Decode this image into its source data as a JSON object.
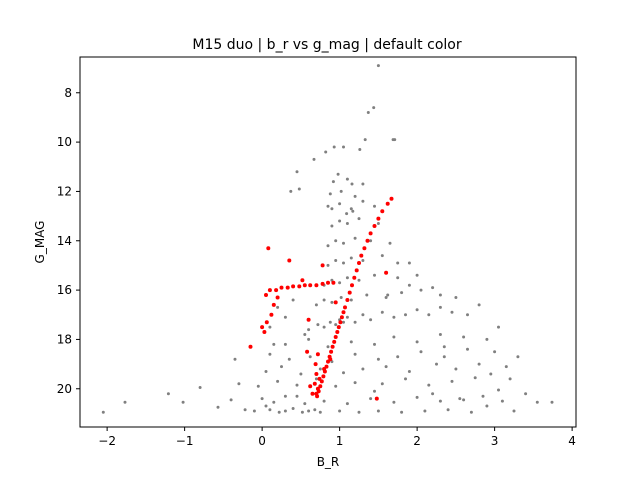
{
  "chart_data": {
    "type": "scatter",
    "title": "M15 duo | b_r vs g_mag | default color",
    "xlabel": "B_R",
    "ylabel": "G_MAG",
    "xlim": [
      -2.35,
      4.05
    ],
    "ylim": [
      21.55,
      6.55
    ],
    "y_inverted": true,
    "grid": false,
    "xticks": [
      -2,
      -1,
      0,
      1,
      2,
      3,
      4
    ],
    "yticks": [
      8,
      10,
      12,
      14,
      16,
      18,
      20
    ],
    "colors": {
      "series_0": "#808080",
      "series_1": "#ff0000",
      "axes": "#000000"
    },
    "series": [
      {
        "color": "#808080",
        "marker_size": 1.5,
        "x": [
          1.5,
          1.44,
          1.37,
          1.33,
          1.69,
          1.71,
          1.05,
          1.26,
          0.93,
          0.67,
          0.82,
          0.98,
          0.48,
          1.16,
          0.45,
          0.37,
          0.9,
          1.09,
          1.17,
          -2.05,
          -1.77,
          -1.21,
          -1.02,
          -0.8,
          -0.4,
          -0.57,
          -0.22,
          -0.1,
          0.05,
          0.1,
          0.22,
          0.3,
          0.4,
          0.52,
          0.6,
          0.68,
          0.75,
          1.0,
          1.25,
          1.5,
          1.8,
          2.1,
          2.4,
          2.7,
          2.9,
          3.1,
          3.25,
          3.4,
          3.55,
          3.74,
          0.0,
          0.15,
          0.3,
          0.55,
          0.8,
          1.1,
          1.4,
          1.7,
          2.0,
          2.3,
          2.6,
          2.85,
          3.05,
          3.2,
          0.45,
          1.45,
          2.2,
          2.55,
          -0.3,
          -0.05,
          0.2,
          0.45,
          0.7,
          0.95,
          1.2,
          1.55,
          1.85,
          2.15,
          2.45,
          2.75,
          2.95,
          3.15,
          0.05,
          0.25,
          0.5,
          0.75,
          1.05,
          1.3,
          1.6,
          1.9,
          2.25,
          2.5,
          2.8,
          -0.35,
          0.1,
          0.35,
          0.62,
          0.9,
          1.2,
          1.5,
          1.75,
          2.05,
          2.35,
          2.65,
          3.0,
          0.3,
          0.6,
          0.85,
          1.15,
          1.45,
          1.7,
          2.0,
          2.3,
          2.6,
          2.9,
          0.6,
          0.72,
          0.8,
          0.88,
          0.95,
          1.0,
          1.05,
          1.1,
          1.2,
          1.3,
          1.4,
          1.55,
          1.7,
          1.85,
          2.0,
          2.15,
          2.3,
          2.45,
          0.7,
          0.8,
          0.9,
          1.02,
          1.15,
          1.35,
          1.6,
          1.8,
          2.05,
          2.3,
          0.8,
          0.9,
          1.0,
          1.1,
          1.25,
          1.45,
          1.75,
          2.0,
          0.85,
          0.95,
          1.05,
          1.15,
          1.3,
          1.55,
          1.9,
          0.85,
          0.95,
          1.05,
          1.2,
          1.4,
          1.65,
          0.9,
          1.0,
          1.1,
          1.25,
          1.5,
          0.85,
          1.0,
          1.15,
          1.3,
          1.45,
          0.88,
          1.02,
          1.2,
          0.92,
          1.1,
          1.3,
          0.3,
          0.2,
          0.1,
          0.4,
          0.15,
          0.55,
          1.62,
          1.9,
          2.5,
          1.75,
          2.2,
          2.8,
          3.05,
          3.3,
          2.65,
          2.35
        ],
        "y": [
          6.9,
          8.6,
          8.8,
          9.9,
          9.9,
          9.9,
          10.2,
          10.3,
          10.2,
          10.7,
          10.4,
          11.3,
          11.9,
          11.7,
          11.2,
          12.0,
          12.7,
          12.9,
          12.8,
          20.95,
          20.55,
          20.2,
          20.55,
          19.95,
          20.45,
          20.75,
          20.85,
          20.9,
          20.7,
          20.85,
          20.95,
          20.9,
          20.8,
          20.95,
          20.9,
          20.85,
          20.95,
          20.9,
          20.95,
          20.9,
          20.95,
          20.9,
          20.85,
          20.95,
          20.7,
          20.5,
          20.9,
          20.2,
          20.55,
          20.55,
          20.4,
          20.55,
          20.3,
          20.6,
          20.5,
          20.6,
          20.4,
          20.55,
          20.35,
          20.5,
          20.45,
          20.3,
          20.05,
          19.6,
          20.3,
          20.1,
          20.2,
          20.4,
          19.8,
          19.9,
          19.7,
          19.85,
          19.6,
          19.9,
          19.75,
          19.8,
          19.6,
          19.85,
          19.7,
          19.55,
          19.4,
          19.1,
          19.3,
          19.1,
          19.4,
          19.2,
          19.35,
          19.2,
          19.1,
          19.3,
          19.0,
          19.2,
          19.0,
          18.8,
          18.6,
          18.8,
          18.7,
          18.9,
          18.6,
          18.8,
          18.7,
          18.5,
          18.7,
          18.4,
          18.5,
          18.2,
          18.0,
          18.3,
          18.1,
          18.2,
          17.9,
          18.1,
          17.8,
          17.9,
          18.0,
          17.6,
          17.4,
          17.5,
          17.3,
          17.4,
          17.2,
          17.3,
          17.1,
          17.3,
          17.0,
          17.2,
          16.9,
          17.1,
          17.0,
          16.8,
          17.0,
          16.7,
          16.9,
          16.6,
          16.4,
          16.5,
          16.3,
          16.4,
          16.2,
          16.3,
          16.1,
          16.0,
          16.2,
          15.8,
          15.6,
          15.7,
          15.5,
          15.6,
          15.4,
          15.5,
          15.4,
          15.0,
          14.8,
          14.9,
          14.7,
          14.8,
          14.6,
          14.9,
          14.2,
          14.0,
          14.1,
          13.9,
          14.0,
          14.1,
          13.4,
          13.2,
          13.3,
          13.1,
          13.3,
          12.6,
          12.5,
          12.7,
          12.4,
          12.6,
          12.1,
          12.0,
          12.2,
          11.6,
          11.5,
          11.7,
          17.1,
          16.7,
          17.5,
          16.4,
          18.2,
          17.8,
          16.2,
          15.8,
          16.3,
          14.9,
          15.9,
          16.6,
          17.5,
          18.7,
          17.0,
          18.3
        ]
      },
      {
        "color": "#ff0000",
        "marker_size": 2,
        "x": [
          1.67,
          1.62,
          1.55,
          1.5,
          1.45,
          1.4,
          1.36,
          1.32,
          1.28,
          1.25,
          1.22,
          1.19,
          1.16,
          1.13,
          1.1,
          1.07,
          1.05,
          1.03,
          1.01,
          0.99,
          0.97,
          0.95,
          0.93,
          0.91,
          0.89,
          0.87,
          0.85,
          0.83,
          0.81,
          0.79,
          0.77,
          0.75,
          0.73,
          0.71,
          0.7,
          0.69,
          0.68,
          0.7,
          0.72,
          0.74,
          0.05,
          0.1,
          0.18,
          0.25,
          0.33,
          0.4,
          0.48,
          0.55,
          0.62,
          0.7,
          0.78,
          0.85,
          0.92,
          0.0,
          0.03,
          0.06,
          0.12,
          0.15,
          0.2,
          0.08,
          -0.15,
          0.35,
          0.52,
          0.6,
          0.72,
          0.8,
          0.88,
          0.65,
          0.78,
          1.6,
          1.48,
          0.95,
          0.58,
          0.62
        ],
        "y": [
          12.3,
          12.5,
          12.8,
          13.1,
          13.4,
          13.7,
          14.0,
          14.3,
          14.6,
          14.9,
          15.2,
          15.5,
          15.8,
          16.1,
          16.4,
          16.7,
          16.9,
          17.1,
          17.3,
          17.5,
          17.7,
          17.9,
          18.1,
          18.3,
          18.5,
          18.7,
          18.9,
          19.1,
          19.3,
          19.5,
          19.7,
          19.9,
          20.1,
          20.3,
          19.4,
          19.0,
          19.8,
          20.2,
          20.0,
          19.6,
          16.2,
          16.0,
          16.0,
          15.9,
          15.9,
          15.85,
          15.85,
          15.8,
          15.8,
          15.8,
          15.75,
          15.7,
          15.7,
          17.5,
          17.7,
          17.3,
          17.0,
          16.6,
          16.3,
          14.3,
          18.3,
          14.8,
          15.6,
          17.2,
          18.6,
          19.2,
          18.8,
          20.2,
          15.0,
          15.3,
          20.4,
          16.5,
          18.5,
          19.9
        ]
      }
    ]
  }
}
